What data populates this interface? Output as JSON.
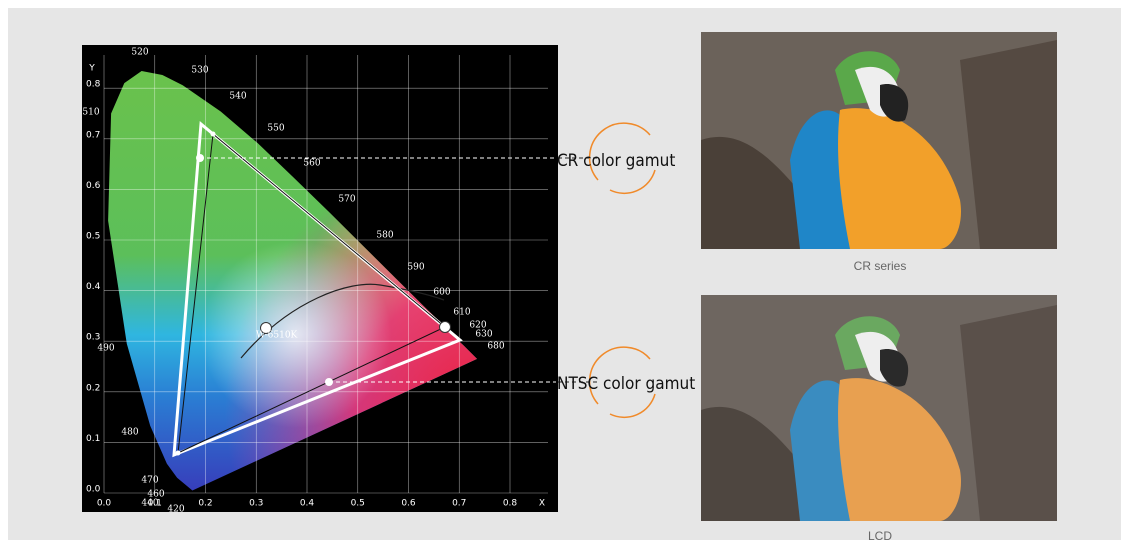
{
  "diagram": {
    "x_axis": {
      "label": "X",
      "ticks": [
        "0.0",
        "0.1",
        "0.2",
        "0.3",
        "0.4",
        "0.5",
        "0.6",
        "0.7",
        "0.8"
      ]
    },
    "y_axis": {
      "label": "Y",
      "ticks": [
        "0.0",
        "0.1",
        "0.2",
        "0.3",
        "0.4",
        "0.5",
        "0.6",
        "0.7",
        "0.8"
      ]
    },
    "wavelengths": [
      "520",
      "530",
      "540",
      "550",
      "560",
      "570",
      "580",
      "590",
      "600",
      "610",
      "620",
      "630",
      "680",
      "510",
      "490",
      "480",
      "470",
      "460",
      "440",
      "420"
    ],
    "white_point": "W-6510K",
    "callouts": [
      "CR color gamut",
      "NTSC color gamut"
    ]
  },
  "photos": {
    "captions": [
      "CR series",
      "LCD"
    ]
  }
}
